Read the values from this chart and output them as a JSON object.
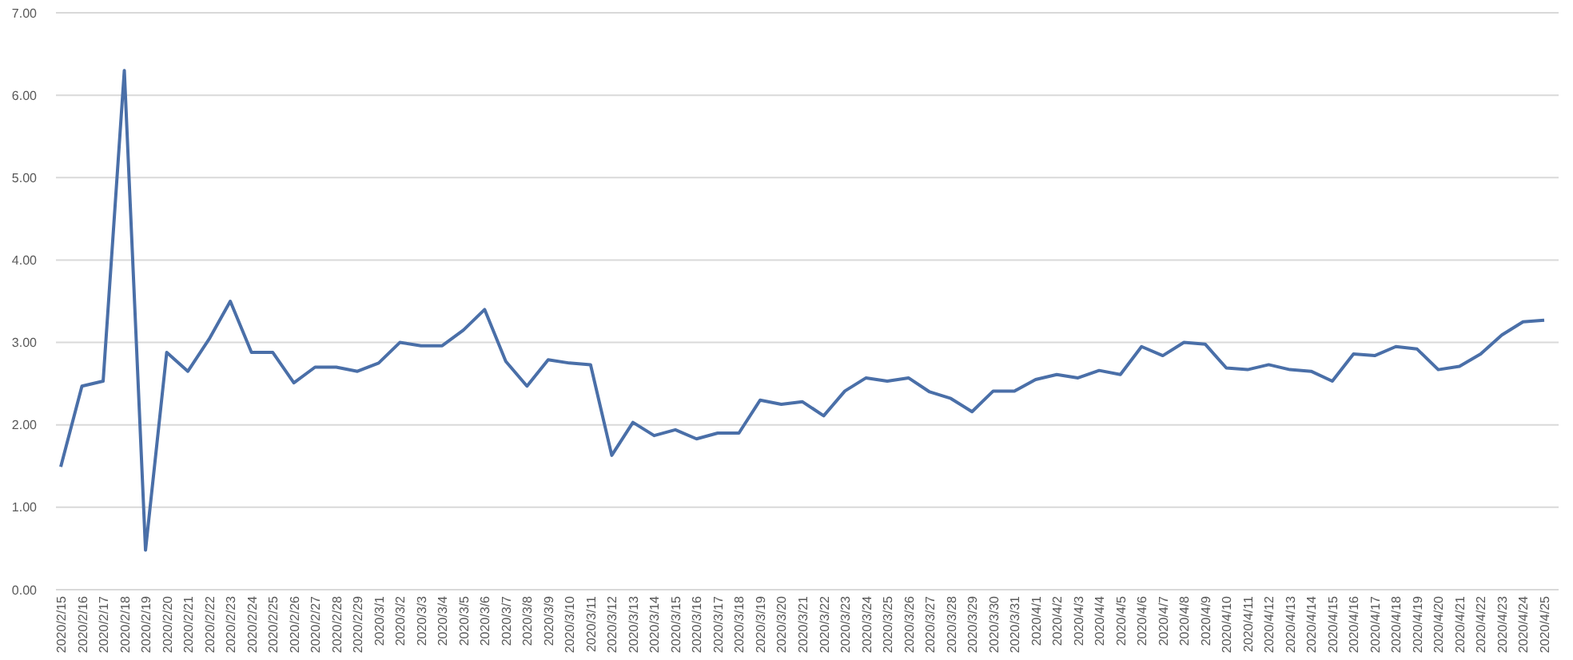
{
  "chart_data": {
    "type": "line",
    "categories": [
      "2020/2/15",
      "2020/2/16",
      "2020/2/17",
      "2020/2/18",
      "2020/2/19",
      "2020/2/20",
      "2020/2/21",
      "2020/2/22",
      "2020/2/23",
      "2020/2/24",
      "2020/2/25",
      "2020/2/26",
      "2020/2/27",
      "2020/2/28",
      "2020/2/29",
      "2020/3/1",
      "2020/3/2",
      "2020/3/3",
      "2020/3/4",
      "2020/3/5",
      "2020/3/6",
      "2020/3/7",
      "2020/3/8",
      "2020/3/9",
      "2020/3/10",
      "2020/3/11",
      "2020/3/12",
      "2020/3/13",
      "2020/3/14",
      "2020/3/15",
      "2020/3/16",
      "2020/3/17",
      "2020/3/18",
      "2020/3/19",
      "2020/3/20",
      "2020/3/21",
      "2020/3/22",
      "2020/3/23",
      "2020/3/24",
      "2020/3/25",
      "2020/3/26",
      "2020/3/27",
      "2020/3/28",
      "2020/3/29",
      "2020/3/30",
      "2020/3/31",
      "2020/4/1",
      "2020/4/2",
      "2020/4/3",
      "2020/4/4",
      "2020/4/5",
      "2020/4/6",
      "2020/4/7",
      "2020/4/8",
      "2020/4/9",
      "2020/4/10",
      "2020/4/11",
      "2020/4/12",
      "2020/4/13",
      "2020/4/14",
      "2020/4/15",
      "2020/4/16",
      "2020/4/17",
      "2020/4/18",
      "2020/4/19",
      "2020/4/20",
      "2020/4/21",
      "2020/4/22",
      "2020/4/23",
      "2020/4/24",
      "2020/4/25"
    ],
    "series": [
      {
        "color": "#4a6fa8",
        "values": [
          1.49,
          2.47,
          2.53,
          6.3,
          0.48,
          2.88,
          2.65,
          3.04,
          3.5,
          2.88,
          2.88,
          2.51,
          2.7,
          2.7,
          2.65,
          2.75,
          3.0,
          2.96,
          2.96,
          3.15,
          3.4,
          2.77,
          2.47,
          2.79,
          2.75,
          2.73,
          1.63,
          2.03,
          1.87,
          1.94,
          1.83,
          1.9,
          1.9,
          2.3,
          2.25,
          2.28,
          2.11,
          2.41,
          2.57,
          2.53,
          2.57,
          2.4,
          2.32,
          2.16,
          2.41,
          2.41,
          2.55,
          2.61,
          2.57,
          2.66,
          2.61,
          2.95,
          2.84,
          3.0,
          2.98,
          2.69,
          2.67,
          2.73,
          2.67,
          2.65,
          2.53,
          2.86,
          2.84,
          2.95,
          2.92,
          2.67,
          2.71,
          2.86,
          3.09,
          3.25,
          3.27
        ]
      }
    ],
    "ylim": [
      0,
      7
    ],
    "yticks": [
      {
        "value": 0,
        "label": "0.00"
      },
      {
        "value": 1,
        "label": "1.00"
      },
      {
        "value": 2,
        "label": "2.00"
      },
      {
        "value": 3,
        "label": "3.00"
      },
      {
        "value": 4,
        "label": "4.00"
      },
      {
        "value": 5,
        "label": "5.00"
      },
      {
        "value": 6,
        "label": "6.00"
      },
      {
        "value": 7,
        "label": "7.00"
      }
    ],
    "grid": "y",
    "marker": "none",
    "line_style": "solid"
  }
}
